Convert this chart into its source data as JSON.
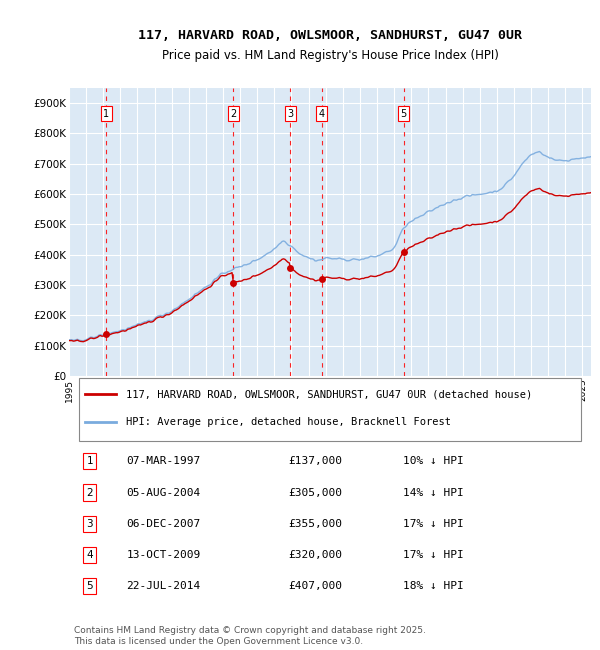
{
  "title": "117, HARVARD ROAD, OWLSMOOR, SANDHURST, GU47 0UR",
  "subtitle": "Price paid vs. HM Land Registry's House Price Index (HPI)",
  "background_color": "#ffffff",
  "chart_bg_color": "#dce9f5",
  "grid_color": "#ffffff",
  "ylim": [
    0,
    950000
  ],
  "yticks": [
    0,
    100000,
    200000,
    300000,
    400000,
    500000,
    600000,
    700000,
    800000,
    900000
  ],
  "ytick_labels": [
    "£0",
    "£100K",
    "£200K",
    "£300K",
    "£400K",
    "£500K",
    "£600K",
    "£700K",
    "£800K",
    "£900K"
  ],
  "hpi_color": "#7aabde",
  "price_color": "#cc0000",
  "purchases": [
    {
      "num": 1,
      "date": "07-MAR-1997",
      "price": 137000,
      "year": 1997.18
    },
    {
      "num": 2,
      "date": "05-AUG-2004",
      "price": 305000,
      "year": 2004.59
    },
    {
      "num": 3,
      "date": "06-DEC-2007",
      "price": 355000,
      "year": 2007.93
    },
    {
      "num": 4,
      "date": "13-OCT-2009",
      "price": 320000,
      "year": 2009.78
    },
    {
      "num": 5,
      "date": "22-JUL-2014",
      "price": 407000,
      "year": 2014.55
    }
  ],
  "legend_entries": [
    "117, HARVARD ROAD, OWLSMOOR, SANDHURST, GU47 0UR (detached house)",
    "HPI: Average price, detached house, Bracknell Forest"
  ],
  "footer": "Contains HM Land Registry data © Crown copyright and database right 2025.\nThis data is licensed under the Open Government Licence v3.0.",
  "table_rows": [
    [
      "1",
      "07-MAR-1997",
      "£137,000",
      "10% ↓ HPI"
    ],
    [
      "2",
      "05-AUG-2004",
      "£305,000",
      "14% ↓ HPI"
    ],
    [
      "3",
      "06-DEC-2007",
      "£355,000",
      "17% ↓ HPI"
    ],
    [
      "4",
      "13-OCT-2009",
      "£320,000",
      "17% ↓ HPI"
    ],
    [
      "5",
      "22-JUL-2014",
      "£407,000",
      "18% ↓ HPI"
    ]
  ]
}
